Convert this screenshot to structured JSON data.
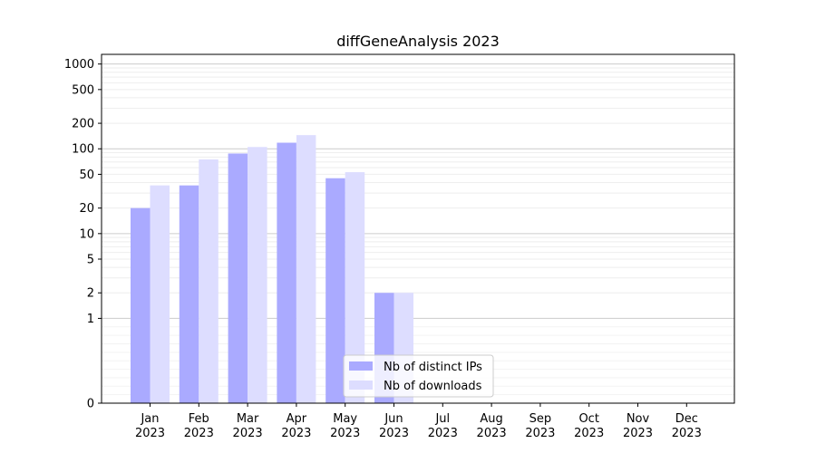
{
  "chart_data": {
    "type": "bar",
    "title": "diffGeneAnalysis 2023",
    "xlabel": "",
    "ylabel": "",
    "yscale": "symlog",
    "ylim": [
      0,
      1300
    ],
    "yticks": [
      0,
      1,
      2,
      5,
      10,
      20,
      50,
      100,
      200,
      500,
      1000
    ],
    "ytick_labels": [
      "0",
      "1",
      "2",
      "5",
      "10",
      "20",
      "50",
      "100",
      "200",
      "500",
      "1000"
    ],
    "categories": [
      "Jan\n2023",
      "Feb\n2023",
      "Mar\n2023",
      "Apr\n2023",
      "May\n2023",
      "Jun\n2023",
      "Jul\n2023",
      "Aug\n2023",
      "Sep\n2023",
      "Oct\n2023",
      "Nov\n2023",
      "Dec\n2023"
    ],
    "series": [
      {
        "name": "Nb of distinct IPs",
        "color": "#aaaaff",
        "values": [
          20,
          37,
          88,
          118,
          45,
          2,
          0,
          0,
          0,
          0,
          0,
          0
        ]
      },
      {
        "name": "Nb of downloads",
        "color": "#ddddff",
        "values": [
          37,
          75,
          105,
          145,
          53,
          2,
          0,
          0,
          0,
          0,
          0,
          0
        ]
      }
    ],
    "legend_position": "lower-center",
    "grid": true
  }
}
